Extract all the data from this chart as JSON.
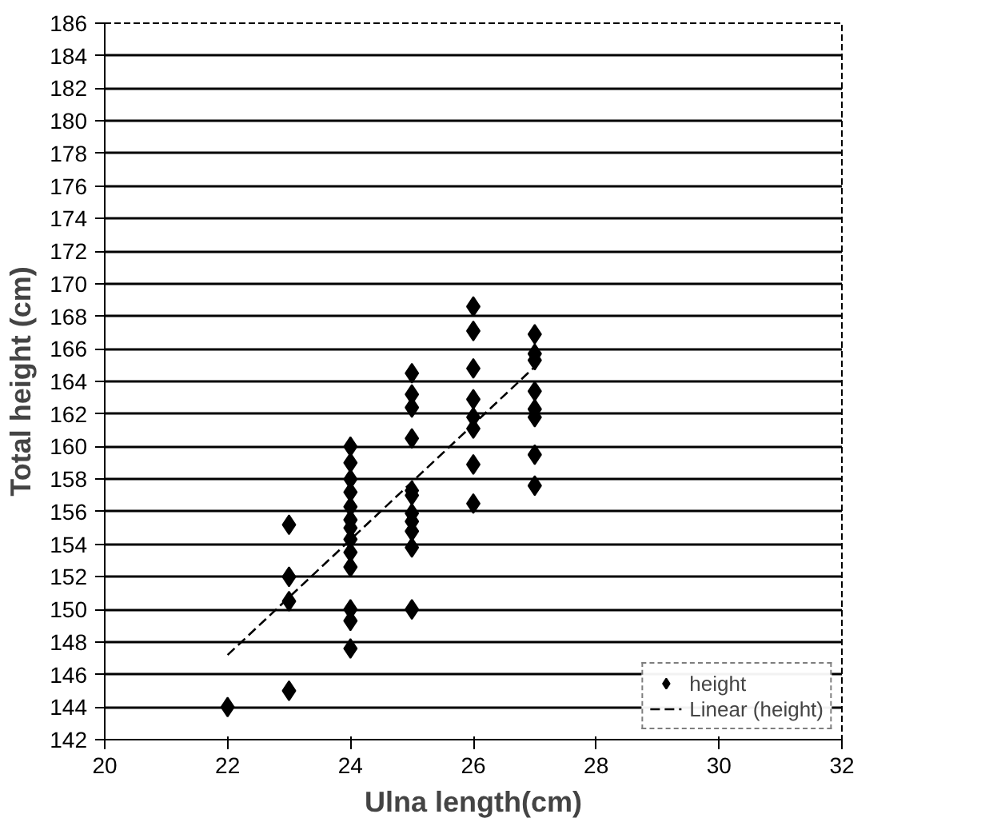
{
  "chart_data": {
    "type": "scatter",
    "xlabel": "Ulna length(cm)",
    "ylabel": "Total height (cm)",
    "xlim": [
      20,
      32
    ],
    "xticks": [
      20,
      22,
      24,
      26,
      28,
      30,
      32
    ],
    "ylim": [
      142,
      186
    ],
    "yticks": [
      142,
      144,
      146,
      148,
      150,
      152,
      154,
      156,
      158,
      160,
      162,
      164,
      166,
      168,
      170,
      172,
      174,
      176,
      178,
      180,
      182,
      184,
      186
    ],
    "grid": "y",
    "legend": "bottom right",
    "series": [
      {
        "name": "height",
        "marker": "diamond",
        "color": "#000000",
        "x": [
          22,
          23,
          23,
          23,
          23,
          24,
          24,
          24,
          24,
          24,
          24,
          24,
          24,
          24,
          24,
          24,
          24,
          24,
          25,
          25,
          25,
          25,
          25,
          25,
          25,
          25,
          25,
          25,
          25,
          26,
          26,
          26,
          26,
          26,
          26,
          26,
          26,
          27,
          27,
          27,
          27,
          27,
          27,
          27,
          27
        ],
        "values": [
          144,
          155.2,
          152,
          150.5,
          145,
          160,
          159,
          158,
          157.2,
          156.3,
          155.5,
          155,
          154.3,
          153.5,
          152.6,
          150,
          149.3,
          147.6,
          164.5,
          163.2,
          162.4,
          160.5,
          157.3,
          157,
          155.9,
          155.4,
          154.8,
          153.8,
          150,
          168.6,
          167.1,
          164.8,
          162.9,
          161.8,
          161.1,
          158.9,
          156.5,
          166.9,
          165.7,
          165.3,
          163.4,
          162.3,
          161.8,
          159.5,
          157.6
        ]
      },
      {
        "name": "Linear (height)",
        "type": "line",
        "line_style": "dashed",
        "color": "#000000",
        "x": [
          22,
          27
        ],
        "values": [
          147.2,
          164.9
        ]
      }
    ]
  }
}
